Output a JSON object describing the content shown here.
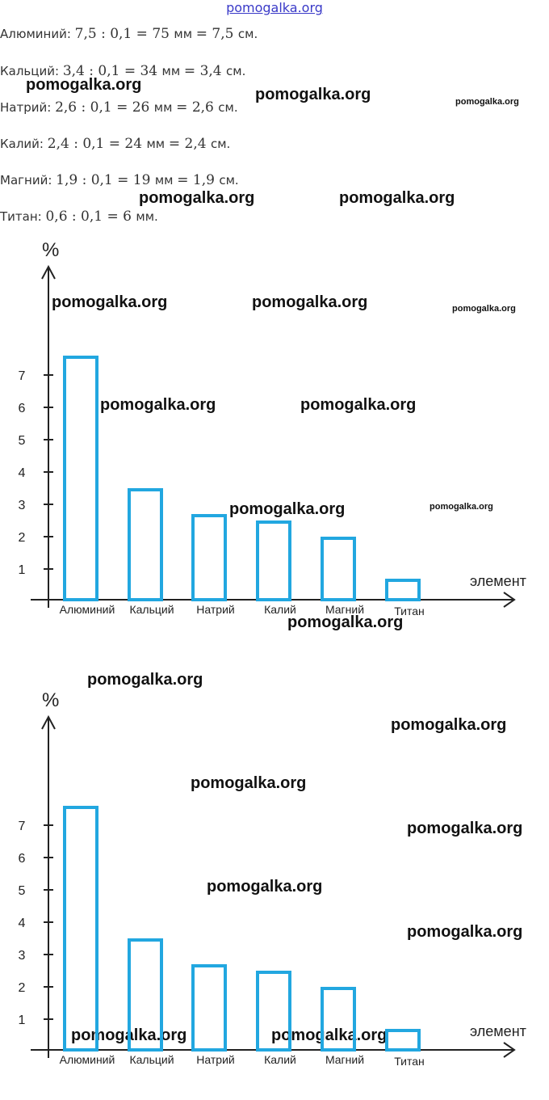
{
  "header": {
    "site_link": "pomogalka.org"
  },
  "calc_lines": [
    {
      "name": "Алюминий:",
      "expr": "7,5 : 0,1 = 75",
      "unit1": "мм",
      "expr2": "= 7,5",
      "unit2": "см."
    },
    {
      "name": "Кальций:",
      "expr": "3,4 : 0,1 = 34",
      "unit1": "мм",
      "expr2": "= 3,4",
      "unit2": "см."
    },
    {
      "name": "Натрий:",
      "expr": "2,6 : 0,1 = 26",
      "unit1": "мм",
      "expr2": "= 2,6",
      "unit2": "см."
    },
    {
      "name": "Калий:",
      "expr": "2,4 : 0,1 = 24",
      "unit1": "мм",
      "expr2": "= 2,4",
      "unit2": "см."
    },
    {
      "name": "Магний:",
      "expr": "1,9 : 0,1 = 19",
      "unit1": "мм",
      "expr2": "= 1,9",
      "unit2": "см."
    },
    {
      "name": "Титан:",
      "expr": "0,6 : 0,1 = 6",
      "unit1": "мм.",
      "expr2": "",
      "unit2": ""
    }
  ],
  "watermark_text": "pomogalka.org",
  "colors": {
    "bar": "#22a7e0",
    "axis": "#222222",
    "link": "#3a3ac8"
  },
  "chart_data": [
    {
      "type": "bar",
      "ylabel": "%",
      "xlabel": "элемент",
      "categories": [
        "Алюминий",
        "Кальций",
        "Натрий",
        "Калий",
        "Магний",
        "Титан"
      ],
      "values": [
        7.5,
        3.4,
        2.6,
        2.4,
        1.9,
        0.6
      ],
      "yticks": [
        1,
        2,
        3,
        4,
        5,
        6,
        7
      ],
      "ylim": [
        0,
        10
      ],
      "grid": false,
      "legend": "none"
    },
    {
      "type": "bar",
      "ylabel": "%",
      "xlabel": "элемент",
      "categories": [
        "Алюминий",
        "Кальций",
        "Натрий",
        "Калий",
        "Магний",
        "Титан"
      ],
      "values": [
        7.5,
        3.4,
        2.6,
        2.4,
        1.9,
        0.6
      ],
      "yticks": [
        1,
        2,
        3,
        4,
        5,
        6,
        7
      ],
      "ylim": [
        0,
        10
      ],
      "grid": false,
      "legend": "none"
    }
  ]
}
